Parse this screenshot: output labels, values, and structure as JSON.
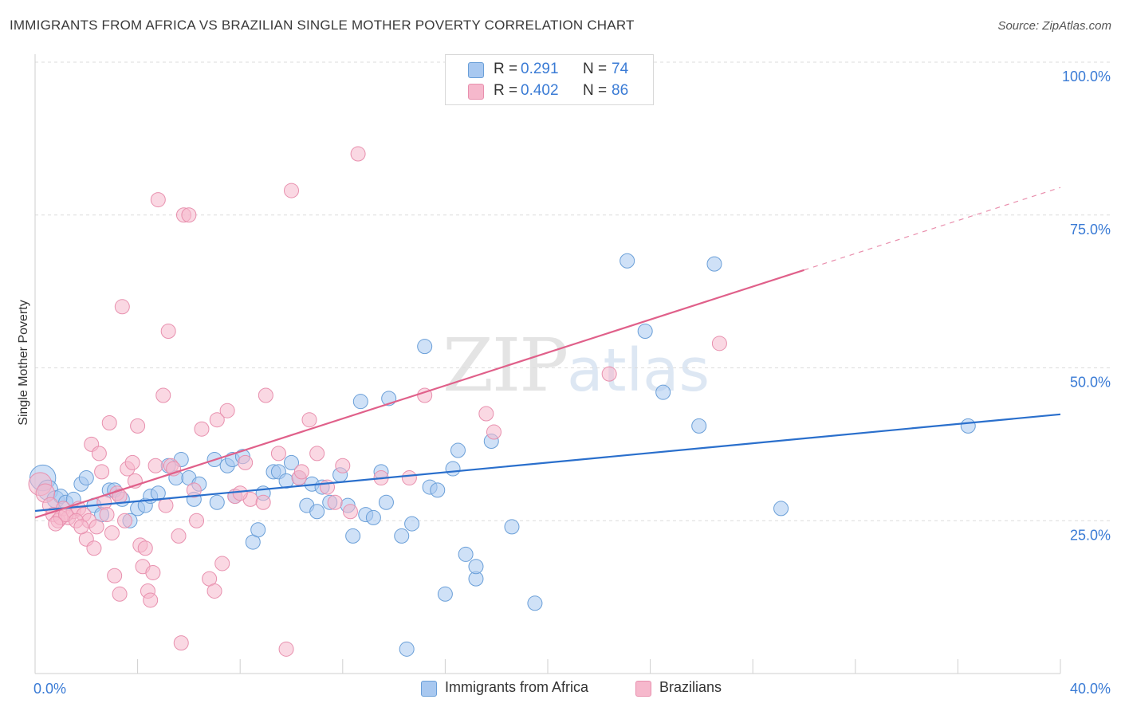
{
  "header": {
    "title": "IMMIGRANTS FROM AFRICA VS BRAZILIAN SINGLE MOTHER POVERTY CORRELATION CHART",
    "source": "Source: ZipAtlas.com"
  },
  "watermark": {
    "part1": "ZIP",
    "part2": "atlas"
  },
  "stats": [
    {
      "r_label": "R =",
      "r_value": "0.291",
      "n_label": "N =",
      "n_value": "74",
      "color": "#a8c8f0"
    },
    {
      "r_label": "R =",
      "r_value": "0.402",
      "n_label": "N =",
      "n_value": "86",
      "color": "#f6b8cc"
    }
  ],
  "colors": {
    "blue_fill": "#a8c8f0",
    "blue_stroke": "#6a9fd8",
    "blue_line": "#2a6fcc",
    "pink_fill": "#f6b8cc",
    "pink_stroke": "#e890ae",
    "pink_line": "#e0608a",
    "tick_text": "#3a7bd5"
  },
  "chart_data": {
    "type": "scatter",
    "title": "IMMIGRANTS FROM AFRICA VS BRAZILIAN SINGLE MOTHER POVERTY CORRELATION CHART",
    "xlabel": "",
    "ylabel": "Single Mother Poverty",
    "xlim": [
      0,
      40
    ],
    "ylim": [
      0,
      100
    ],
    "x_tick_labels": [
      "0.0%",
      "40.0%"
    ],
    "y_ticks": [
      25,
      50,
      75,
      100
    ],
    "y_tick_labels": [
      "25.0%",
      "50.0%",
      "75.0%",
      "100.0%"
    ],
    "grid": true,
    "legend_position": "bottom-center",
    "series": [
      {
        "name": "Immigrants from Africa",
        "trend": {
          "x": [
            0,
            40
          ],
          "y": [
            26.6,
            42.4
          ],
          "dashed_from": null
        },
        "points": [
          [
            0.3,
            32.0,
            1.8
          ],
          [
            0.5,
            30.0,
            1.4
          ],
          [
            0.8,
            28.5,
            1.2
          ],
          [
            1.0,
            29.0,
            1.0
          ],
          [
            1.2,
            28.0,
            1.0
          ],
          [
            1.5,
            28.5,
            1.0
          ],
          [
            1.8,
            31.0,
            1.0
          ],
          [
            2.0,
            32.0,
            1.0
          ],
          [
            2.3,
            27.5,
            1.0
          ],
          [
            2.6,
            26.0,
            1.0
          ],
          [
            2.9,
            30.0,
            1.0
          ],
          [
            3.1,
            30.0,
            1.0
          ],
          [
            3.4,
            28.5,
            1.0
          ],
          [
            3.7,
            25.0,
            1.0
          ],
          [
            4.0,
            27.0,
            1.0
          ],
          [
            4.3,
            27.5,
            1.0
          ],
          [
            4.5,
            29.0,
            1.0
          ],
          [
            4.8,
            29.5,
            1.0
          ],
          [
            5.2,
            34.0,
            1.0
          ],
          [
            5.5,
            32.0,
            1.0
          ],
          [
            5.7,
            35.0,
            1.0
          ],
          [
            6.0,
            32.0,
            1.0
          ],
          [
            6.2,
            28.5,
            1.0
          ],
          [
            6.4,
            31.0,
            1.0
          ],
          [
            7.0,
            35.0,
            1.0
          ],
          [
            7.1,
            28.0,
            1.0
          ],
          [
            7.5,
            34.0,
            1.0
          ],
          [
            7.7,
            35.0,
            1.0
          ],
          [
            7.8,
            29.0,
            1.0
          ],
          [
            8.1,
            35.5,
            1.0
          ],
          [
            8.5,
            21.5,
            1.0
          ],
          [
            8.7,
            23.5,
            1.0
          ],
          [
            8.9,
            29.5,
            1.0
          ],
          [
            9.3,
            33.0,
            1.0
          ],
          [
            9.5,
            33.0,
            1.0
          ],
          [
            9.8,
            31.5,
            1.0
          ],
          [
            10.0,
            34.5,
            1.0
          ],
          [
            10.3,
            32.0,
            1.0
          ],
          [
            10.6,
            27.5,
            1.0
          ],
          [
            10.8,
            31.0,
            1.0
          ],
          [
            11.0,
            26.5,
            1.0
          ],
          [
            11.2,
            30.5,
            1.0
          ],
          [
            11.5,
            28.0,
            1.0
          ],
          [
            11.9,
            32.5,
            1.0
          ],
          [
            12.2,
            27.5,
            1.0
          ],
          [
            12.4,
            22.5,
            1.0
          ],
          [
            12.7,
            44.5,
            1.0
          ],
          [
            12.9,
            26.0,
            1.0
          ],
          [
            13.2,
            25.5,
            1.0
          ],
          [
            13.5,
            33.0,
            1.0
          ],
          [
            13.7,
            28.0,
            1.0
          ],
          [
            13.8,
            45.0,
            1.0
          ],
          [
            14.3,
            22.5,
            1.0
          ],
          [
            14.7,
            24.5,
            1.0
          ],
          [
            14.5,
            4.0,
            1.0
          ],
          [
            15.2,
            53.5,
            1.0
          ],
          [
            15.4,
            30.5,
            1.0
          ],
          [
            15.7,
            30.0,
            1.0
          ],
          [
            16.0,
            13.0,
            1.0
          ],
          [
            16.3,
            33.5,
            1.0
          ],
          [
            16.5,
            36.5,
            1.0
          ],
          [
            16.8,
            19.5,
            1.0
          ],
          [
            17.2,
            15.5,
            1.0
          ],
          [
            17.2,
            17.5,
            1.0
          ],
          [
            17.8,
            38.0,
            1.0
          ],
          [
            18.6,
            24.0,
            1.0
          ],
          [
            19.5,
            11.5,
            1.0
          ],
          [
            23.1,
            67.5,
            1.0
          ],
          [
            23.8,
            56.0,
            1.0
          ],
          [
            24.5,
            46.0,
            1.0
          ],
          [
            25.9,
            40.5,
            1.0
          ],
          [
            26.5,
            67.0,
            1.0
          ],
          [
            29.1,
            27.0,
            1.0
          ],
          [
            36.4,
            40.5,
            1.0
          ]
        ]
      },
      {
        "name": "Brazilians",
        "trend": {
          "x": [
            0,
            40
          ],
          "y": [
            25.5,
            79.5
          ],
          "dashed_from": 30.0
        },
        "points": [
          [
            0.2,
            31.0,
            1.6
          ],
          [
            0.4,
            29.5,
            1.3
          ],
          [
            0.6,
            27.5,
            1.1
          ],
          [
            0.7,
            26.0,
            1.0
          ],
          [
            0.9,
            25.0,
            1.0
          ],
          [
            1.1,
            27.0,
            1.0
          ],
          [
            1.3,
            25.5,
            1.0
          ],
          [
            1.5,
            26.5,
            1.0
          ],
          [
            1.7,
            27.0,
            1.0
          ],
          [
            1.9,
            26.0,
            1.0
          ],
          [
            2.0,
            22.0,
            1.0
          ],
          [
            2.1,
            25.0,
            1.0
          ],
          [
            2.2,
            37.5,
            1.0
          ],
          [
            2.3,
            20.5,
            1.0
          ],
          [
            2.4,
            24.0,
            1.0
          ],
          [
            2.5,
            36.0,
            1.0
          ],
          [
            2.6,
            33.0,
            1.0
          ],
          [
            2.7,
            28.0,
            1.0
          ],
          [
            2.9,
            41.0,
            1.0
          ],
          [
            3.0,
            23.0,
            1.0
          ],
          [
            3.1,
            16.0,
            1.0
          ],
          [
            3.2,
            29.5,
            1.0
          ],
          [
            3.3,
            13.0,
            1.0
          ],
          [
            3.4,
            60.0,
            1.0
          ],
          [
            3.5,
            25.0,
            1.0
          ],
          [
            3.6,
            33.5,
            1.0
          ],
          [
            3.8,
            34.5,
            1.0
          ],
          [
            3.9,
            31.5,
            1.0
          ],
          [
            4.0,
            40.5,
            1.0
          ],
          [
            4.1,
            21.0,
            1.0
          ],
          [
            4.2,
            17.5,
            1.0
          ],
          [
            4.3,
            20.5,
            1.0
          ],
          [
            4.4,
            13.5,
            1.0
          ],
          [
            4.5,
            12.0,
            1.0
          ],
          [
            4.6,
            16.5,
            1.0
          ],
          [
            4.7,
            34.0,
            1.0
          ],
          [
            4.8,
            77.5,
            1.0
          ],
          [
            5.0,
            45.5,
            1.0
          ],
          [
            5.1,
            27.5,
            1.0
          ],
          [
            5.2,
            56.0,
            1.0
          ],
          [
            5.3,
            34.0,
            1.0
          ],
          [
            5.6,
            22.5,
            1.0
          ],
          [
            5.7,
            5.0,
            1.0
          ],
          [
            5.8,
            75.0,
            1.0
          ],
          [
            6.0,
            75.0,
            1.0
          ],
          [
            6.3,
            25.0,
            1.0
          ],
          [
            6.5,
            40.0,
            1.0
          ],
          [
            6.8,
            15.5,
            1.0
          ],
          [
            7.0,
            13.5,
            1.0
          ],
          [
            7.1,
            41.5,
            1.0
          ],
          [
            7.3,
            18.0,
            1.0
          ],
          [
            7.5,
            43.0,
            1.0
          ],
          [
            7.8,
            29.0,
            1.0
          ],
          [
            8.2,
            34.5,
            1.0
          ],
          [
            8.4,
            28.5,
            1.0
          ],
          [
            8.9,
            28.0,
            1.0
          ],
          [
            9.0,
            45.5,
            1.0
          ],
          [
            9.5,
            36.0,
            1.0
          ],
          [
            10.0,
            79.0,
            1.0
          ],
          [
            10.3,
            32.0,
            1.0
          ],
          [
            10.7,
            41.5,
            1.0
          ],
          [
            11.0,
            36.0,
            1.0
          ],
          [
            11.7,
            28.0,
            1.0
          ],
          [
            12.0,
            34.0,
            1.0
          ],
          [
            12.3,
            26.5,
            1.0
          ],
          [
            12.6,
            85.0,
            1.0
          ],
          [
            9.8,
            4.0,
            1.0
          ],
          [
            13.5,
            32.0,
            1.0
          ],
          [
            14.6,
            32.0,
            1.0
          ],
          [
            15.2,
            45.5,
            1.0
          ],
          [
            17.6,
            42.5,
            1.0
          ],
          [
            17.9,
            39.5,
            1.0
          ],
          [
            22.4,
            49.0,
            1.0
          ],
          [
            26.7,
            54.0,
            1.0
          ],
          [
            1.0,
            25.5,
            1.0
          ],
          [
            1.2,
            26.0,
            1.0
          ],
          [
            1.6,
            25.0,
            1.0
          ],
          [
            1.8,
            24.0,
            1.0
          ],
          [
            0.8,
            24.5,
            1.0
          ],
          [
            3.3,
            29.0,
            1.0
          ],
          [
            2.8,
            26.0,
            1.0
          ],
          [
            5.4,
            33.5,
            1.0
          ],
          [
            6.2,
            30.0,
            1.0
          ],
          [
            8.0,
            29.5,
            1.0
          ],
          [
            10.4,
            33.0,
            1.0
          ],
          [
            11.4,
            30.5,
            1.0
          ]
        ]
      }
    ]
  }
}
